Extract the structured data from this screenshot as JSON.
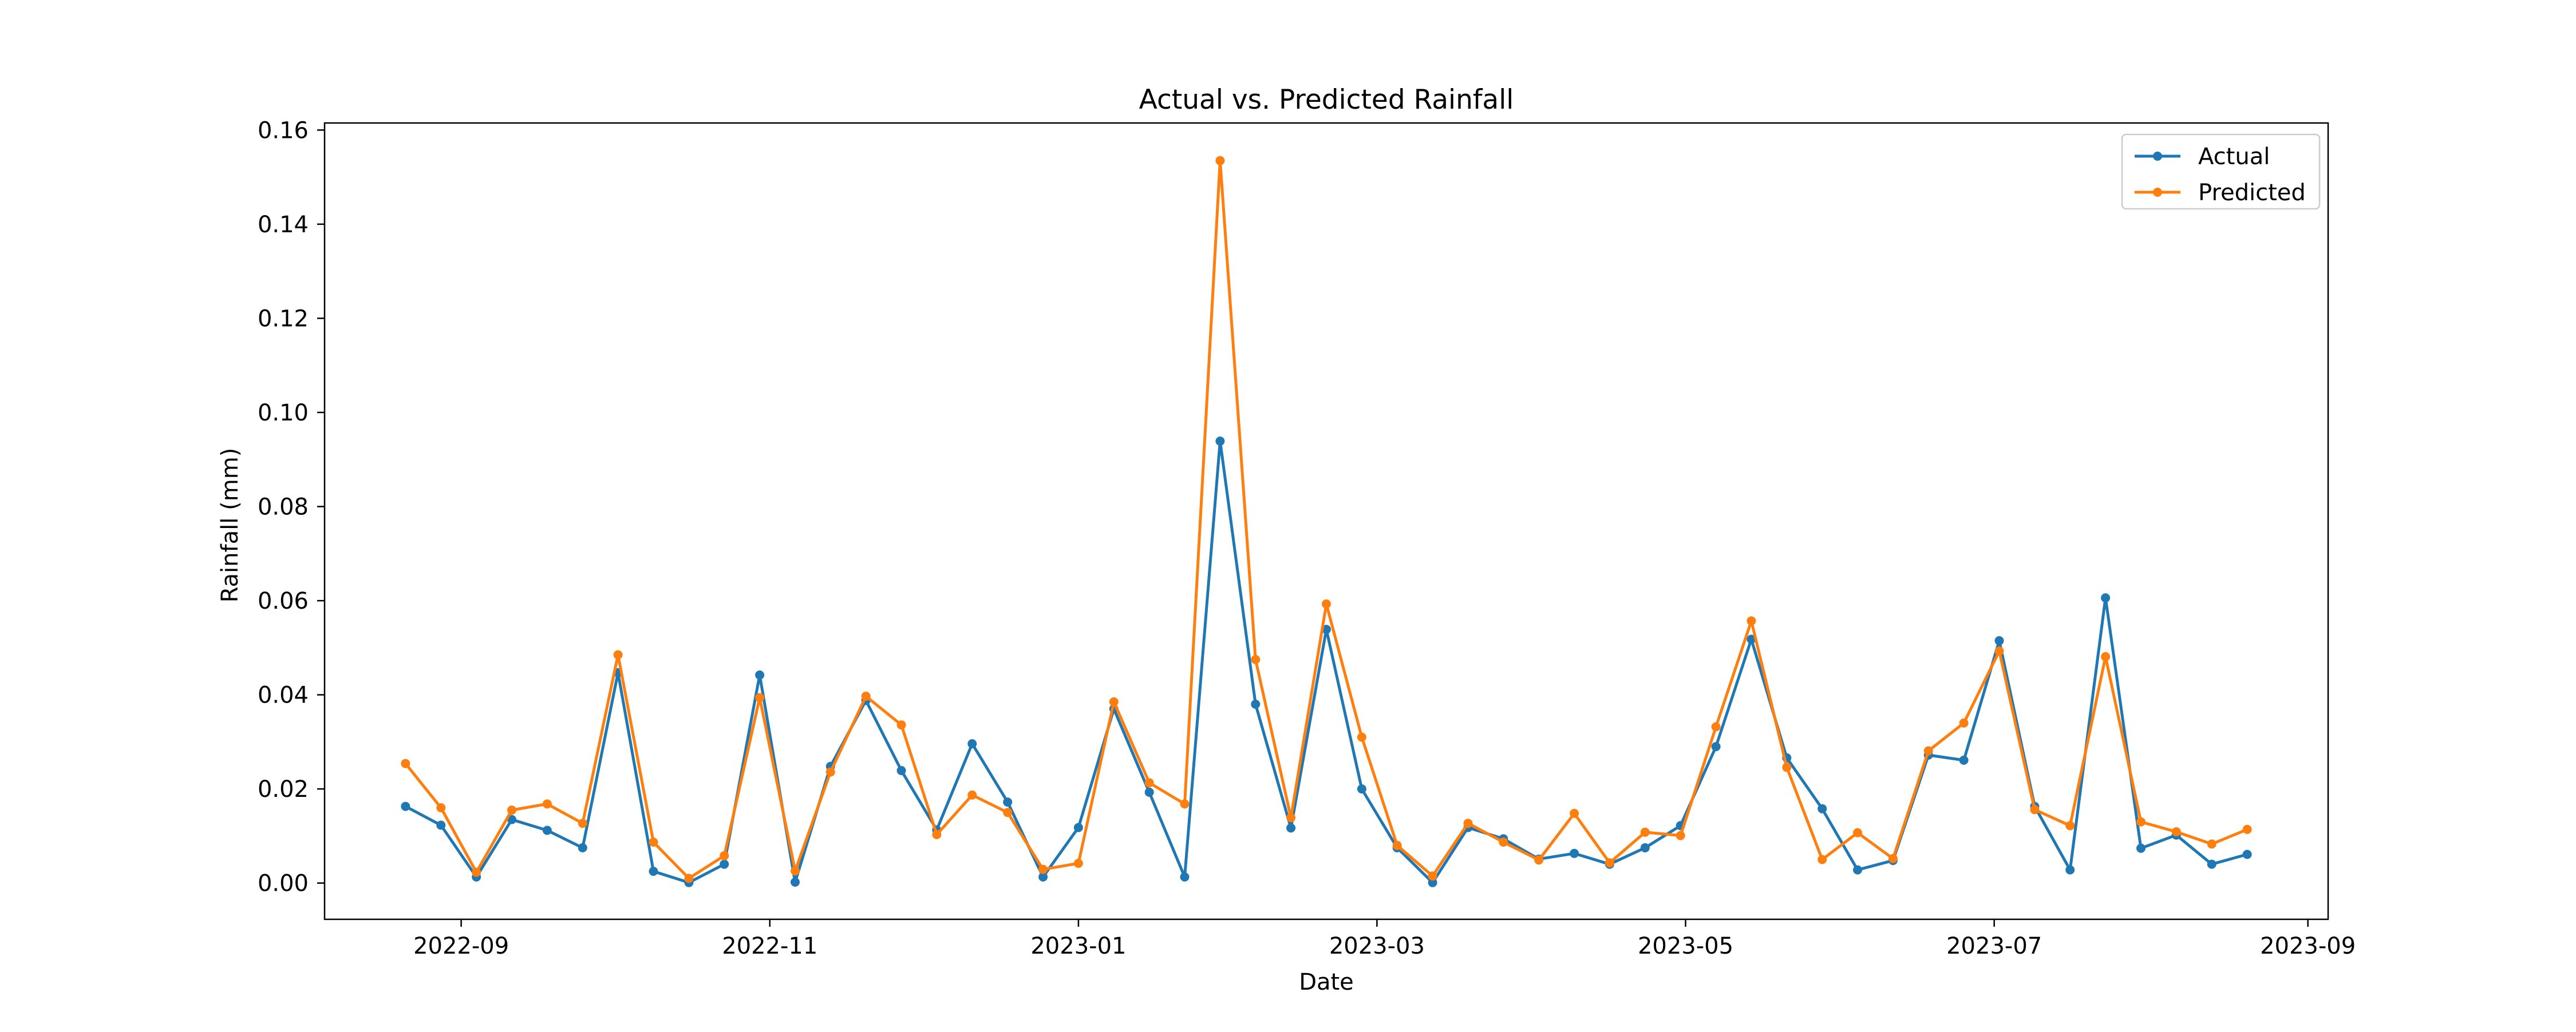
{
  "chart_data": {
    "type": "line",
    "title": "Actual vs. Predicted Rainfall",
    "xlabel": "Date",
    "ylabel": "Rainfall (mm)",
    "xlim": [
      "2022-08-05",
      "2023-09-05"
    ],
    "ylim": [
      -0.0077,
      0.1615
    ],
    "x_ticks": [
      "2022-09-01",
      "2022-11-01",
      "2023-01-01",
      "2023-03-01",
      "2023-05-01",
      "2023-07-01",
      "2023-09-01"
    ],
    "x_tick_labels": [
      "2022-09",
      "2022-11",
      "2023-01",
      "2023-03",
      "2023-05",
      "2023-07",
      "2023-09"
    ],
    "y_ticks": [
      0.0,
      0.02,
      0.04,
      0.06,
      0.08,
      0.1,
      0.12,
      0.14,
      0.16
    ],
    "y_tick_labels": [
      "0.00",
      "0.02",
      "0.04",
      "0.06",
      "0.08",
      "0.10",
      "0.12",
      "0.14",
      "0.16"
    ],
    "grid": false,
    "legend_position": "top-right",
    "x": [
      "2022-08-21",
      "2022-08-28",
      "2022-09-04",
      "2022-09-11",
      "2022-09-18",
      "2022-09-25",
      "2022-10-02",
      "2022-10-09",
      "2022-10-16",
      "2022-10-23",
      "2022-10-30",
      "2022-11-06",
      "2022-11-13",
      "2022-11-20",
      "2022-11-27",
      "2022-12-04",
      "2022-12-11",
      "2022-12-18",
      "2022-12-25",
      "2023-01-01",
      "2023-01-08",
      "2023-01-15",
      "2023-01-22",
      "2023-01-29",
      "2023-02-05",
      "2023-02-12",
      "2023-02-19",
      "2023-02-26",
      "2023-03-05",
      "2023-03-12",
      "2023-03-19",
      "2023-03-26",
      "2023-04-02",
      "2023-04-09",
      "2023-04-16",
      "2023-04-23",
      "2023-04-30",
      "2023-05-07",
      "2023-05-14",
      "2023-05-21",
      "2023-05-28",
      "2023-06-04",
      "2023-06-11",
      "2023-06-18",
      "2023-06-25",
      "2023-07-02",
      "2023-07-09",
      "2023-07-16",
      "2023-07-23",
      "2023-07-30",
      "2023-08-06",
      "2023-08-13",
      "2023-08-20"
    ],
    "series": [
      {
        "name": "Actual",
        "color": "#1f77b4",
        "values": [
          0.0163,
          0.0123,
          0.0013,
          0.0135,
          0.0112,
          0.0075,
          0.0447,
          0.0025,
          0.0001,
          0.004,
          0.0442,
          0.0002,
          0.0248,
          0.0388,
          0.0239,
          0.0113,
          0.0296,
          0.0172,
          0.0013,
          0.0118,
          0.037,
          0.0193,
          0.0013,
          0.0939,
          0.038,
          0.0117,
          0.0539,
          0.02,
          0.0075,
          0.0001,
          0.0118,
          0.0094,
          0.0051,
          0.0063,
          0.004,
          0.0075,
          0.0122,
          0.029,
          0.0518,
          0.0266,
          0.0158,
          0.0028,
          0.0048,
          0.0272,
          0.0261,
          0.0515,
          0.0163,
          0.0028,
          0.0606,
          0.0074,
          0.0102,
          0.004,
          0.0061
        ]
      },
      {
        "name": "Predicted",
        "color": "#ff7f0e",
        "values": [
          0.0254,
          0.016,
          0.0023,
          0.0155,
          0.0168,
          0.0127,
          0.0485,
          0.0087,
          0.001,
          0.0058,
          0.0394,
          0.0026,
          0.0236,
          0.0397,
          0.0336,
          0.0103,
          0.0187,
          0.015,
          0.0029,
          0.0042,
          0.0385,
          0.0213,
          0.0168,
          0.1535,
          0.0475,
          0.0139,
          0.0593,
          0.031,
          0.008,
          0.0015,
          0.0127,
          0.0087,
          0.0049,
          0.0148,
          0.0043,
          0.0108,
          0.0101,
          0.0332,
          0.0557,
          0.0246,
          0.005,
          0.0107,
          0.0052,
          0.0281,
          0.034,
          0.0493,
          0.0156,
          0.0122,
          0.0481,
          0.013,
          0.0109,
          0.0083,
          0.0114
        ]
      }
    ]
  }
}
